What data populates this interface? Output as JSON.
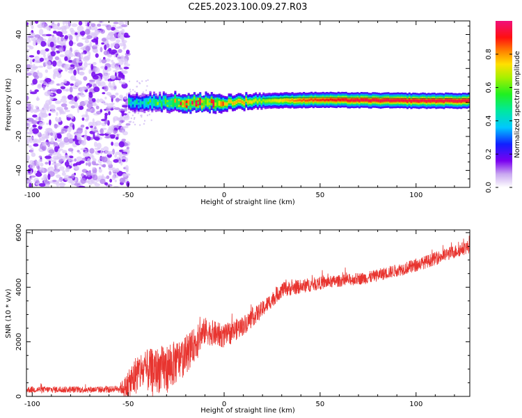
{
  "title": "C2E5.2023.100.09.27.R03",
  "chart_data": [
    {
      "type": "heatmap",
      "xlabel": "Height of straight line (km)",
      "ylabel": "Frequency (Hz)",
      "xlim": [
        -103,
        128
      ],
      "ylim": [
        -50,
        48
      ],
      "xticks": [
        -100,
        -50,
        0,
        50,
        100
      ],
      "yticks": [
        -40,
        -20,
        0,
        20,
        40
      ],
      "noise_region": {
        "x_from": -103,
        "x_to": -50,
        "description": "broadband low-amplitude noise"
      },
      "signal_band": {
        "center_freq": [
          {
            "x": -50,
            "f": 0.5
          },
          {
            "x": -40,
            "f": 0
          },
          {
            "x": -30,
            "f": 0
          },
          {
            "x": -20,
            "f": 0
          },
          {
            "x": -10,
            "f": 0
          },
          {
            "x": 0,
            "f": 0
          },
          {
            "x": 20,
            "f": 1
          },
          {
            "x": 50,
            "f": 1.5
          },
          {
            "x": 100,
            "f": 1
          },
          {
            "x": 128,
            "f": 1
          }
        ],
        "peak_amplitude": [
          {
            "x": -50,
            "a": 0.45
          },
          {
            "x": -40,
            "a": 0.5
          },
          {
            "x": -30,
            "a": 0.6
          },
          {
            "x": -20,
            "a": 0.85
          },
          {
            "x": -10,
            "a": 0.9
          },
          {
            "x": 0,
            "a": 0.75
          },
          {
            "x": 10,
            "a": 0.8
          },
          {
            "x": 20,
            "a": 0.65
          },
          {
            "x": 40,
            "a": 0.85
          },
          {
            "x": 70,
            "a": 0.95
          },
          {
            "x": 100,
            "a": 0.95
          },
          {
            "x": 128,
            "a": 0.95
          }
        ]
      },
      "colorbar": {
        "label": "Normalized spectral amplitude",
        "range": [
          0,
          1
        ],
        "ticks": [
          0.0,
          0.2,
          0.4,
          0.6,
          0.8
        ],
        "tick_labels": [
          "0.0",
          "0.2",
          "0.4",
          "0.6",
          "0.8"
        ]
      }
    },
    {
      "type": "line",
      "xlabel": "Height of straight line (km)",
      "ylabel": "SNR (10 * v/v)",
      "xlim": [
        -103,
        128
      ],
      "ylim": [
        0,
        6100
      ],
      "xticks": [
        -100,
        -50,
        0,
        50,
        100
      ],
      "yticks": [
        0,
        2000,
        4000,
        6000
      ],
      "color": "#e8342f",
      "trend": [
        {
          "x": -103,
          "y": 250
        },
        {
          "x": -60,
          "y": 250
        },
        {
          "x": -50,
          "y": 350
        },
        {
          "x": -45,
          "y": 900
        },
        {
          "x": -30,
          "y": 1000
        },
        {
          "x": -20,
          "y": 1500
        },
        {
          "x": -10,
          "y": 2400
        },
        {
          "x": 0,
          "y": 2200
        },
        {
          "x": 10,
          "y": 2600
        },
        {
          "x": 20,
          "y": 3200
        },
        {
          "x": 30,
          "y": 3900
        },
        {
          "x": 50,
          "y": 4150
        },
        {
          "x": 75,
          "y": 4350
        },
        {
          "x": 100,
          "y": 4800
        },
        {
          "x": 128,
          "y": 5500
        }
      ],
      "noise_amplitude": [
        {
          "x": -103,
          "a": 120
        },
        {
          "x": -55,
          "a": 120
        },
        {
          "x": -48,
          "a": 700
        },
        {
          "x": -30,
          "a": 900
        },
        {
          "x": -10,
          "a": 500
        },
        {
          "x": 20,
          "a": 300
        },
        {
          "x": 60,
          "a": 220
        },
        {
          "x": 128,
          "a": 250
        }
      ]
    }
  ]
}
